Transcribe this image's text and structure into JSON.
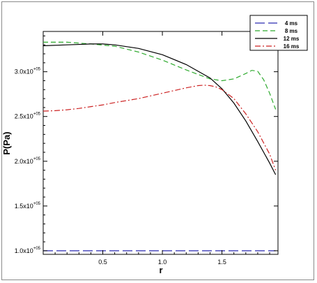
{
  "chart_data": {
    "type": "line",
    "xlabel": "r",
    "ylabel": "P(Pa)",
    "xlim": [
      0.0,
      1.97
    ],
    "ylim": [
      96000.0,
      345000.0
    ],
    "x_ticks": [
      {
        "value": 0.5,
        "label": "0.5"
      },
      {
        "value": 1.0,
        "label": "1.0"
      },
      {
        "value": 1.5,
        "label": "1.5"
      }
    ],
    "y_ticks": [
      {
        "value": 100000,
        "label": "1.0x10",
        "exp": "+05"
      },
      {
        "value": 150000,
        "label": "1.5x10",
        "exp": "+05"
      },
      {
        "value": 200000,
        "label": "2.0x10",
        "exp": "+05"
      },
      {
        "value": 250000,
        "label": "2.5x10",
        "exp": "+05"
      },
      {
        "value": 300000,
        "label": "3.0x10",
        "exp": "+05"
      }
    ],
    "legend_position": "top-right",
    "series": [
      {
        "name": "4 ms",
        "color": "#2a2ab0",
        "dash": "long-dash",
        "x": [
          0.0,
          1.95
        ],
        "y": [
          100000,
          100000
        ]
      },
      {
        "name": "8 ms",
        "color": "#2eaa2e",
        "dash": "dash",
        "x": [
          0.0,
          0.2,
          0.4,
          0.6,
          0.8,
          1.0,
          1.2,
          1.4,
          1.5,
          1.6,
          1.7,
          1.75,
          1.8,
          1.85,
          1.9,
          1.95
        ],
        "y": [
          333000,
          333000,
          331000,
          328500,
          322000,
          313000,
          302000,
          292000,
          290000,
          292000,
          298000,
          301500,
          300500,
          291000,
          276000,
          258000
        ]
      },
      {
        "name": "12 ms",
        "color": "#000000",
        "dash": "solid",
        "x": [
          0.0,
          0.2,
          0.4,
          0.5,
          0.6,
          0.8,
          1.0,
          1.2,
          1.4,
          1.5,
          1.6,
          1.7,
          1.8,
          1.9,
          1.95
        ],
        "y": [
          329000,
          330000,
          331000,
          331000,
          330000,
          326000,
          319000,
          308000,
          293000,
          281000,
          265000,
          245000,
          222000,
          198000,
          185000
        ]
      },
      {
        "name": "16 ms",
        "color": "#cc2222",
        "dash": "dash-dot",
        "x": [
          0.0,
          0.1,
          0.2,
          0.3,
          0.4,
          0.5,
          0.6,
          0.8,
          1.0,
          1.2,
          1.3,
          1.35,
          1.4,
          1.45,
          1.5,
          1.6,
          1.7,
          1.8,
          1.9,
          1.95
        ],
        "y": [
          256000,
          256500,
          257500,
          259000,
          261000,
          263000,
          265500,
          270000,
          276000,
          282000,
          284500,
          285000,
          284500,
          283000,
          280000,
          270000,
          253000,
          233000,
          208000,
          190000
        ]
      }
    ]
  }
}
